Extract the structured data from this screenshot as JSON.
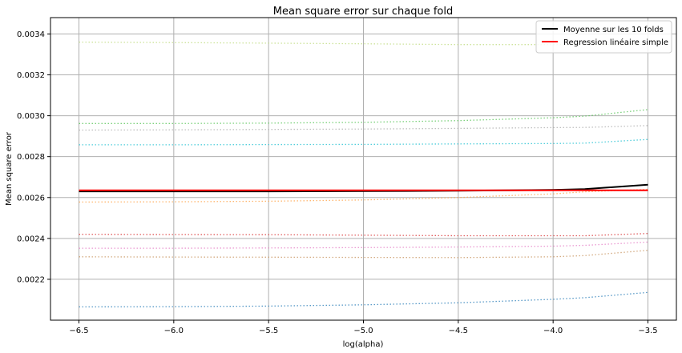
{
  "chart_data": {
    "type": "line",
    "title": "Mean square error sur chaque fold",
    "xlabel": "log(alpha)",
    "ylabel": "Mean square error",
    "xlim": [
      -6.65,
      -3.35
    ],
    "ylim": [
      0.002,
      0.00348
    ],
    "x_ticks": [
      -6.5,
      -6.0,
      -5.5,
      -5.0,
      -4.5,
      -4.0,
      -3.5
    ],
    "x_tick_labels": [
      "−6.5",
      "−6.0",
      "−5.5",
      "−5.0",
      "−4.5",
      "−4.0",
      "−3.5"
    ],
    "y_ticks": [
      0.0022,
      0.0024,
      0.0026,
      0.0028,
      0.003,
      0.0032,
      0.0034
    ],
    "y_tick_labels": [
      "0.0022",
      "0.0024",
      "0.0026",
      "0.0028",
      "0.0030",
      "0.0032",
      "0.0034"
    ],
    "grid": true,
    "legend_position": "top-right",
    "x": [
      -6.5,
      -6.0,
      -5.5,
      -5.0,
      -4.5,
      -4.0,
      -3.833,
      -3.5
    ],
    "folds": [
      {
        "color": "#bcd97a",
        "values": [
          0.00336,
          0.003358,
          0.003355,
          0.003352,
          0.003348,
          0.003348,
          0.003348,
          0.003349
        ]
      },
      {
        "color": "#4fc24f",
        "values": [
          0.002962,
          0.002962,
          0.002964,
          0.002968,
          0.002976,
          0.00299,
          0.002998,
          0.00303
        ]
      },
      {
        "color": "#aaaaaa",
        "values": [
          0.00293,
          0.002931,
          0.002933,
          0.002935,
          0.002938,
          0.002942,
          0.002943,
          0.002952
        ]
      },
      {
        "color": "#17becf",
        "values": [
          0.002858,
          0.002858,
          0.002859,
          0.00286,
          0.002862,
          0.002864,
          0.002866,
          0.002884
        ]
      },
      {
        "color": "#ff9f40",
        "values": [
          0.002578,
          0.002579,
          0.002582,
          0.002588,
          0.0026,
          0.002618,
          0.002628,
          0.00264
        ]
      },
      {
        "color": "#d62728",
        "values": [
          0.00242,
          0.002419,
          0.002418,
          0.002416,
          0.002413,
          0.002413,
          0.002413,
          0.002424
        ]
      },
      {
        "color": "#e377c2",
        "values": [
          0.002352,
          0.002352,
          0.002353,
          0.002355,
          0.002358,
          0.002362,
          0.002366,
          0.002382
        ]
      },
      {
        "color": "#c5905a",
        "values": [
          0.00231,
          0.002309,
          0.002308,
          0.002307,
          0.002306,
          0.00231,
          0.002316,
          0.002342
        ]
      },
      {
        "color": "#1f77b4",
        "values": [
          0.002065,
          0.002066,
          0.002069,
          0.002075,
          0.002085,
          0.002102,
          0.00211,
          0.002136
        ]
      }
    ],
    "series": [
      {
        "name": "Moyenne sur les 10 folds",
        "color": "#000000",
        "values": [
          0.00263,
          0.00263,
          0.00263,
          0.002631,
          0.002633,
          0.002637,
          0.002641,
          0.002663
        ]
      },
      {
        "name": "Regression linéaire simple",
        "color": "#ff0000",
        "values": [
          0.002635,
          0.002635,
          0.002635,
          0.002635,
          0.002635,
          0.002635,
          0.002635,
          0.002635
        ]
      }
    ]
  }
}
